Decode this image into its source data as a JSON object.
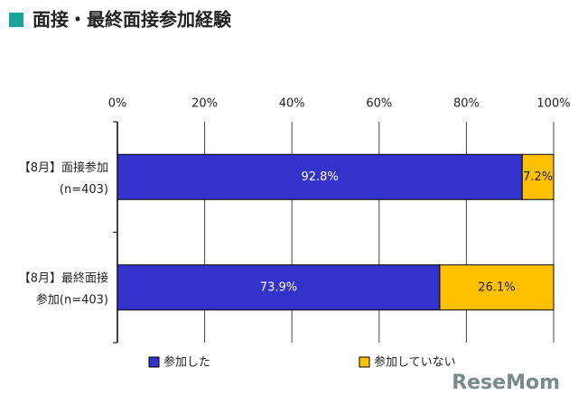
{
  "chart_data": {
    "type": "stacked_barh",
    "title": "面接・最終面接参加経験",
    "categories": [
      [
        "【8月】面接参加",
        "(n=403)"
      ],
      [
        "【8月】最終面接",
        "参加(n=403)"
      ]
    ],
    "series": [
      {
        "name": "参加した",
        "color": "#3333cc",
        "values": [
          92.8,
          73.9
        ],
        "value_labels": [
          "92.8%",
          "73.9%"
        ]
      },
      {
        "name": "参加していない",
        "color": "#ffc000",
        "values": [
          7.2,
          26.1
        ],
        "value_labels": [
          "7.2%",
          "26.1%"
        ]
      }
    ],
    "xlim": [
      0,
      100
    ],
    "xticks": [
      {
        "value": 0,
        "label": "0%"
      },
      {
        "value": 20,
        "label": "20%"
      },
      {
        "value": 40,
        "label": "40%"
      },
      {
        "value": 60,
        "label": "60%"
      },
      {
        "value": 80,
        "label": "80%"
      },
      {
        "value": 100,
        "label": "100%"
      }
    ],
    "grid": true,
    "legend": "bottom",
    "watermark": "ReseMom"
  }
}
